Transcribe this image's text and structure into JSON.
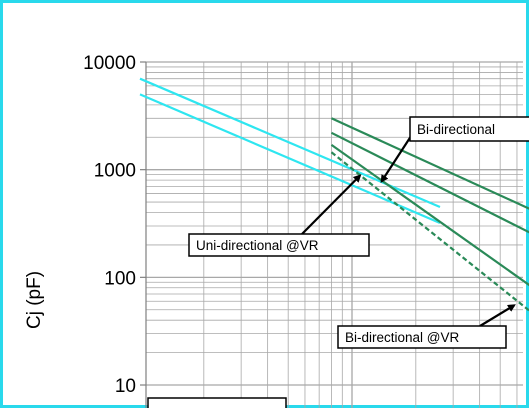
{
  "chart_data": {
    "type": "line",
    "title": "",
    "xlabel": "",
    "ylabel": "Cj (pF)",
    "yscale": "log",
    "xscale": "log",
    "ylim": [
      10,
      10000
    ],
    "y_ticks": [
      "10000",
      "1000",
      "100",
      "10"
    ],
    "grid": true,
    "colors": {
      "cyan": "#2ee6f0",
      "green": "#2a8a58",
      "grid": "#a8a8a8",
      "frame": "#29d9ec"
    },
    "series": [
      {
        "color": "#2ee6f0",
        "style": "solid",
        "points": [
          [
            1.0,
            7000
          ],
          [
            26.0,
            450
          ]
        ]
      },
      {
        "color": "#2ee6f0",
        "style": "solid",
        "points": [
          [
            1.0,
            5000
          ],
          [
            26.0,
            320
          ]
        ]
      },
      {
        "color": "#2a8a58",
        "style": "solid",
        "points": [
          [
            8.0,
            3000
          ],
          [
            90.0,
            340
          ]
        ]
      },
      {
        "color": "#2a8a58",
        "style": "solid",
        "points": [
          [
            8.0,
            2200
          ],
          [
            90.0,
            200
          ]
        ]
      },
      {
        "color": "#2a8a58",
        "style": "solid",
        "points": [
          [
            8.0,
            1700
          ],
          [
            90.0,
            58
          ]
        ]
      },
      {
        "color": "#2a8a58",
        "style": "dashed",
        "points": [
          [
            8.0,
            1450
          ],
          [
            90.0,
            32
          ]
        ]
      }
    ],
    "annotations": [
      {
        "text": "Bi-directional",
        "arrow_to": [
          13.8,
          780
        ]
      },
      {
        "text": "Uni-directional @VR",
        "arrow_to": [
          10.9,
          880
        ]
      },
      {
        "text": "Bi-directional @VR",
        "arrow_to": [
          58.2,
          55
        ]
      }
    ]
  }
}
